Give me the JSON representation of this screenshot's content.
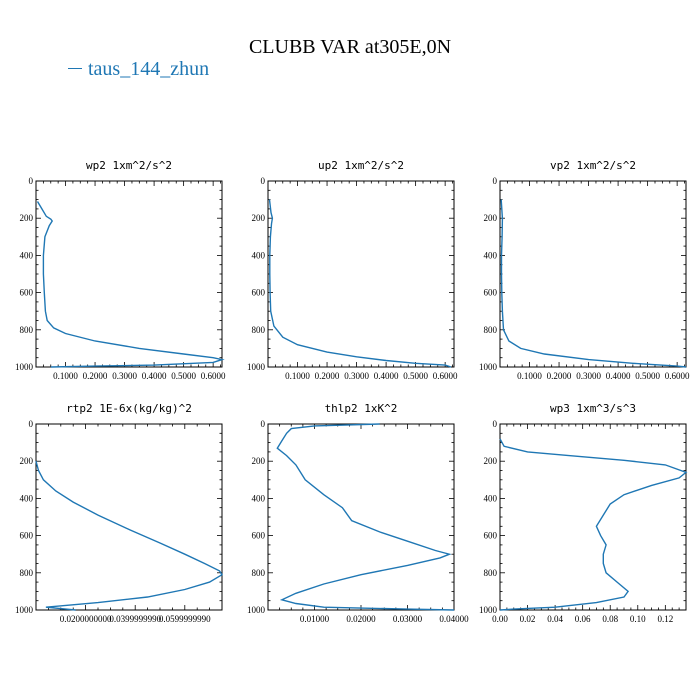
{
  "title": "CLUBB VAR at305E,0N",
  "legend": {
    "label": "taus_144_zhun",
    "color": "#1f77b4"
  },
  "colors": {
    "line": "#1f77b4",
    "axes": "#000000"
  },
  "chart_data": [
    {
      "type": "line",
      "title": "wp2  1xm^2/s^2",
      "ylim": [
        1000,
        0
      ],
      "ydir": "inverted",
      "xlim": [
        0.0,
        0.63
      ],
      "yticks": [
        0,
        200,
        400,
        600,
        800,
        1000
      ],
      "xticks": [
        0.1,
        0.2,
        0.3,
        0.4,
        0.5,
        0.6
      ],
      "xtick_labels": [
        "0.1000",
        "0.2000",
        "0.3000",
        "0.4000",
        "0.5000",
        "0.6000"
      ],
      "series": [
        {
          "name": "taus_144_zhun",
          "points": [
            [
              0.005,
              110
            ],
            [
              0.02,
              150
            ],
            [
              0.035,
              190
            ],
            [
              0.05,
              205
            ],
            [
              0.055,
              215
            ],
            [
              0.045,
              240
            ],
            [
              0.03,
              300
            ],
            [
              0.025,
              400
            ],
            [
              0.025,
              500
            ],
            [
              0.028,
              600
            ],
            [
              0.032,
              700
            ],
            [
              0.038,
              750
            ],
            [
              0.06,
              790
            ],
            [
              0.1,
              820
            ],
            [
              0.2,
              860
            ],
            [
              0.35,
              900
            ],
            [
              0.5,
              930
            ],
            [
              0.6,
              950
            ],
            [
              0.63,
              960
            ],
            [
              0.6,
              975
            ],
            [
              0.4,
              990
            ],
            [
              0.2,
              995
            ],
            [
              0.05,
              1000
            ]
          ]
        }
      ]
    },
    {
      "type": "line",
      "title": "up2  1xm^2/s^2",
      "ylim": [
        1000,
        0
      ],
      "ydir": "inverted",
      "xlim": [
        0.0,
        0.63
      ],
      "yticks": [
        0,
        200,
        400,
        600,
        800,
        1000
      ],
      "xticks": [
        0.1,
        0.2,
        0.3,
        0.4,
        0.5,
        0.6
      ],
      "xtick_labels": [
        "0.1000",
        "0.2000",
        "0.3000",
        "0.4000",
        "0.5000",
        "0.6000"
      ],
      "series": [
        {
          "name": "taus_144_zhun",
          "points": [
            [
              0.005,
              100
            ],
            [
              0.01,
              170
            ],
            [
              0.015,
              200
            ],
            [
              0.012,
              230
            ],
            [
              0.008,
              300
            ],
            [
              0.006,
              400
            ],
            [
              0.006,
              500
            ],
            [
              0.007,
              600
            ],
            [
              0.009,
              700
            ],
            [
              0.02,
              780
            ],
            [
              0.05,
              840
            ],
            [
              0.1,
              880
            ],
            [
              0.2,
              920
            ],
            [
              0.3,
              945
            ],
            [
              0.4,
              965
            ],
            [
              0.5,
              980
            ],
            [
              0.6,
              990
            ],
            [
              0.62,
              1000
            ]
          ]
        }
      ]
    },
    {
      "type": "line",
      "title": "vp2  1xm^2/s^2",
      "ylim": [
        1000,
        0
      ],
      "ydir": "inverted",
      "xlim": [
        0.0,
        0.63
      ],
      "yticks": [
        0,
        200,
        400,
        600,
        800,
        1000
      ],
      "xticks": [
        0.1,
        0.2,
        0.3,
        0.4,
        0.5,
        0.6
      ],
      "xtick_labels": [
        "0.1000",
        "0.2000",
        "0.3000",
        "0.4000",
        "0.5000",
        "0.6000"
      ],
      "series": [
        {
          "name": "taus_144_zhun",
          "points": [
            [
              0.004,
              100
            ],
            [
              0.008,
              200
            ],
            [
              0.007,
              300
            ],
            [
              0.005,
              400
            ],
            [
              0.005,
              500
            ],
            [
              0.006,
              600
            ],
            [
              0.008,
              700
            ],
            [
              0.012,
              800
            ],
            [
              0.03,
              860
            ],
            [
              0.07,
              900
            ],
            [
              0.15,
              930
            ],
            [
              0.3,
              960
            ],
            [
              0.45,
              980
            ],
            [
              0.6,
              995
            ],
            [
              0.63,
              1000
            ]
          ]
        }
      ]
    },
    {
      "type": "line",
      "title": "rtp2  1E-6x(kg/kg)^2",
      "ylim": [
        1000,
        0
      ],
      "ydir": "inverted",
      "xlim": [
        0.0,
        0.075
      ],
      "yticks": [
        0,
        200,
        400,
        600,
        800,
        1000
      ],
      "xticks": [
        0.02,
        0.04,
        0.06
      ],
      "xtick_labels": [
        "0.0200000000",
        "0.0399999990",
        "0.0599999990"
      ],
      "series": [
        {
          "name": "taus_144_zhun",
          "points": [
            [
              0.0,
              200
            ],
            [
              0.001,
              250
            ],
            [
              0.003,
              300
            ],
            [
              0.008,
              360
            ],
            [
              0.015,
              420
            ],
            [
              0.025,
              490
            ],
            [
              0.038,
              570
            ],
            [
              0.05,
              640
            ],
            [
              0.06,
              700
            ],
            [
              0.068,
              750
            ],
            [
              0.074,
              790
            ],
            [
              0.075,
              810
            ],
            [
              0.07,
              850
            ],
            [
              0.06,
              890
            ],
            [
              0.045,
              930
            ],
            [
              0.025,
              960
            ],
            [
              0.012,
              975
            ],
            [
              0.004,
              985
            ],
            [
              0.012,
              995
            ],
            [
              0.016,
              1000
            ]
          ]
        }
      ]
    },
    {
      "type": "line",
      "title": "thlp2  1xK^2",
      "ylim": [
        1000,
        0
      ],
      "ydir": "inverted",
      "xlim": [
        0.0,
        0.04
      ],
      "yticks": [
        0,
        200,
        400,
        600,
        800,
        1000
      ],
      "xticks": [
        0.01,
        0.02,
        0.03,
        0.04
      ],
      "xtick_labels": [
        "0.01000",
        "0.02000",
        "0.03000",
        "0.04000"
      ],
      "series": [
        {
          "name": "taus_144_zhun",
          "points": [
            [
              0.024,
              0
            ],
            [
              0.01,
              10
            ],
            [
              0.005,
              25
            ],
            [
              0.004,
              50
            ],
            [
              0.003,
              90
            ],
            [
              0.002,
              130
            ],
            [
              0.004,
              170
            ],
            [
              0.006,
              220
            ],
            [
              0.008,
              300
            ],
            [
              0.012,
              380
            ],
            [
              0.016,
              450
            ],
            [
              0.018,
              520
            ],
            [
              0.024,
              580
            ],
            [
              0.03,
              630
            ],
            [
              0.036,
              680
            ],
            [
              0.039,
              700
            ],
            [
              0.037,
              720
            ],
            [
              0.03,
              760
            ],
            [
              0.02,
              810
            ],
            [
              0.012,
              860
            ],
            [
              0.006,
              910
            ],
            [
              0.003,
              945
            ],
            [
              0.006,
              965
            ],
            [
              0.012,
              985
            ],
            [
              0.03,
              995
            ],
            [
              0.04,
              1000
            ]
          ]
        }
      ]
    },
    {
      "type": "line",
      "title": "wp3  1xm^3/s^3",
      "ylim": [
        1000,
        0
      ],
      "ydir": "inverted",
      "xlim": [
        0.0,
        0.135
      ],
      "yticks": [
        0,
        200,
        400,
        600,
        800,
        1000
      ],
      "xticks": [
        0.0,
        0.02,
        0.04,
        0.06,
        0.08,
        0.1,
        0.12
      ],
      "xtick_labels": [
        "0.00",
        "0.02",
        "0.04",
        "0.06",
        "0.08",
        "0.10",
        "0.12"
      ],
      "series": [
        {
          "name": "taus_144_zhun",
          "points": [
            [
              0.0,
              80
            ],
            [
              0.003,
              120
            ],
            [
              0.02,
              150
            ],
            [
              0.05,
              170
            ],
            [
              0.09,
              195
            ],
            [
              0.12,
              220
            ],
            [
              0.135,
              260
            ],
            [
              0.13,
              290
            ],
            [
              0.11,
              330
            ],
            [
              0.09,
              380
            ],
            [
              0.08,
              430
            ],
            [
              0.075,
              490
            ],
            [
              0.07,
              550
            ],
            [
              0.073,
              600
            ],
            [
              0.077,
              650
            ],
            [
              0.075,
              700
            ],
            [
              0.075,
              750
            ],
            [
              0.077,
              800
            ],
            [
              0.085,
              850
            ],
            [
              0.093,
              900
            ],
            [
              0.09,
              930
            ],
            [
              0.07,
              960
            ],
            [
              0.04,
              985
            ],
            [
              0.01,
              995
            ],
            [
              0.0,
              1000
            ]
          ]
        }
      ]
    }
  ]
}
